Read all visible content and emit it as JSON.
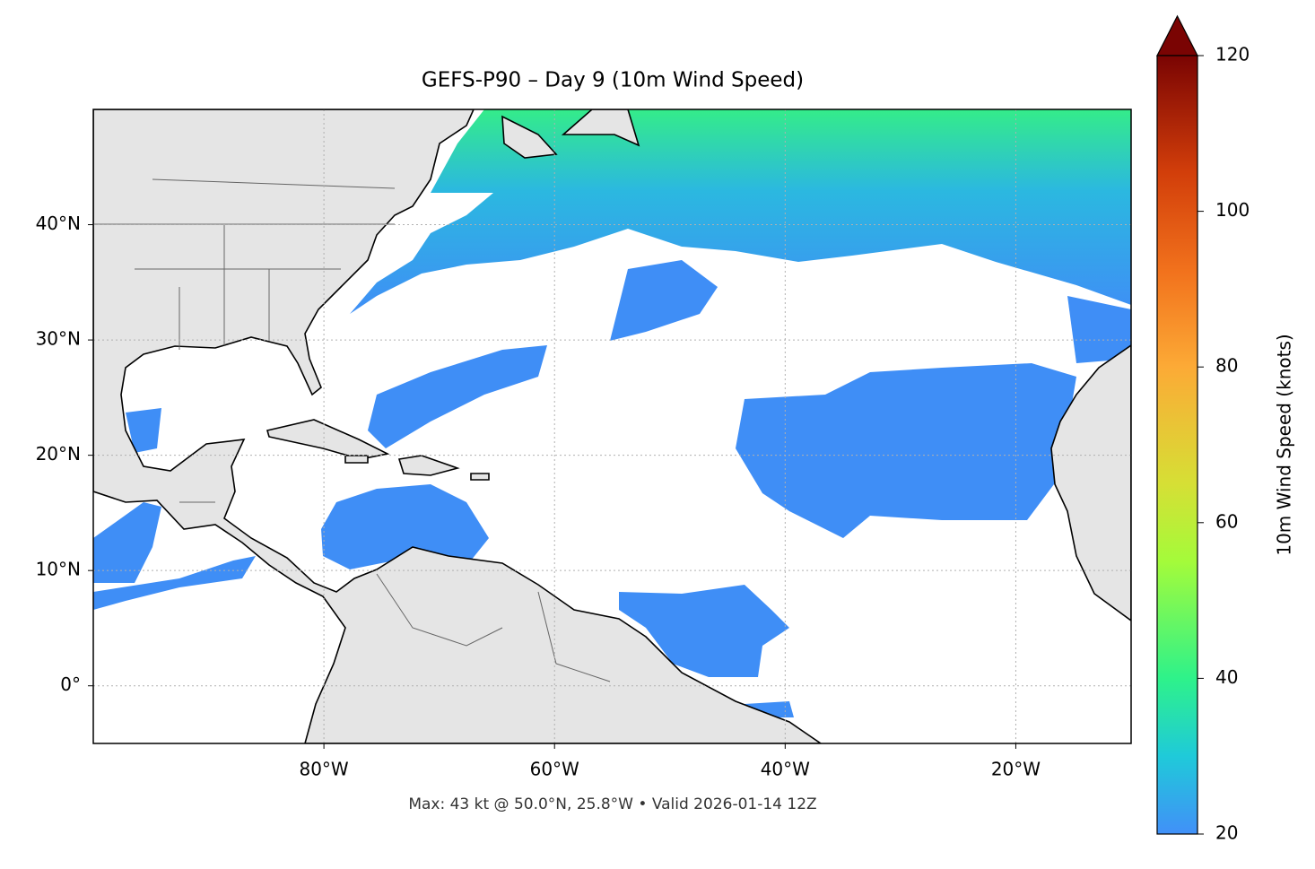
{
  "chart_data": {
    "type": "map",
    "title": "GEFS-P90 – Day 9 (10m Wind Speed)",
    "footer": "Max: 43 kt @ 50.0°N, 25.8°W • Valid 2026-01-14 12Z",
    "xlim": [
      -100,
      -10
    ],
    "ylim": [
      -5,
      50
    ],
    "xticks": [
      {
        "value": -80,
        "label": "80°W"
      },
      {
        "value": -60,
        "label": "60°W"
      },
      {
        "value": -40,
        "label": "40°W"
      },
      {
        "value": -20,
        "label": "20°W"
      }
    ],
    "yticks": [
      {
        "value": 0,
        "label": "0°"
      },
      {
        "value": 10,
        "label": "10°N"
      },
      {
        "value": 20,
        "label": "20°N"
      },
      {
        "value": 30,
        "label": "30°N"
      },
      {
        "value": 40,
        "label": "40°N"
      }
    ],
    "grid": true,
    "colorbar": {
      "label": "10m Wind Speed (knots)",
      "lim": [
        20,
        120
      ],
      "ticks": [
        20,
        40,
        60,
        80,
        100,
        120
      ]
    }
  }
}
